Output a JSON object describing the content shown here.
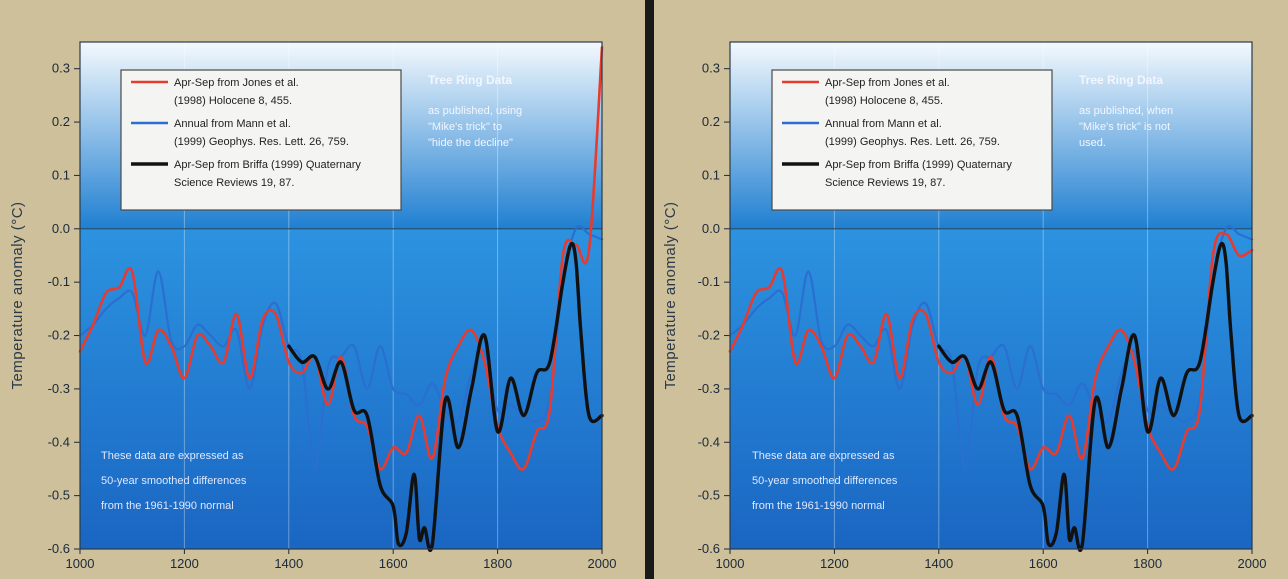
{
  "colors": {
    "frame": "#cdc09a",
    "sky_top": "#f4f9fd",
    "sky_bottom": "#1f7fd1",
    "red_series": "#e63b2e",
    "blue_series": "#2a6fd0",
    "black_series": "#111111"
  },
  "chart_data": [
    {
      "type": "line",
      "ylabel": "Temperature anomaly (°C)",
      "xlim": [
        1000,
        2000
      ],
      "ylim": [
        -0.6,
        0.35
      ],
      "xticks": [
        "1000",
        "1200",
        "1400",
        "1600",
        "1800",
        "2000"
      ],
      "yticks": [
        "0.3",
        "0.2",
        "0.1",
        "0.0",
        "-0.1",
        "-0.2",
        "-0.3",
        "-0.4",
        "-0.5",
        "-0.6"
      ],
      "grid": true,
      "legend_position": "top-left",
      "legend": [
        {
          "color": "red",
          "lines": [
            "Apr-Sep from Jones et al.",
            "(1998) Holocene 8, 455."
          ]
        },
        {
          "color": "blue",
          "lines": [
            "Annual from Mann et al.",
            "(1999) Geophys. Res. Lett. 26, 759."
          ]
        },
        {
          "color": "black",
          "lines": [
            "Apr-Sep from Briffa (1999) Quaternary",
            "Science Reviews 19, 87."
          ]
        }
      ],
      "annotation_title": "Tree Ring Data",
      "annotation_lines": [
        "as published, using",
        "\"Mike's trick\" to",
        "\"hide the decline\""
      ],
      "bottom_note": [
        "These data are expressed as",
        "50-year smoothed differences",
        "from the 1961-1990 normal"
      ],
      "series": [
        {
          "color": "red",
          "x": [
            1000,
            1025,
            1050,
            1075,
            1100,
            1125,
            1150,
            1175,
            1200,
            1225,
            1250,
            1275,
            1300,
            1325,
            1350,
            1375,
            1400,
            1425,
            1450,
            1475,
            1500,
            1525,
            1550,
            1575,
            1600,
            1625,
            1650,
            1675,
            1700,
            1725,
            1750,
            1775,
            1800,
            1825,
            1850,
            1875,
            1900,
            1925,
            1950,
            1975,
            2000
          ],
          "y": [
            -0.23,
            -0.18,
            -0.12,
            -0.11,
            -0.08,
            -0.25,
            -0.19,
            -0.22,
            -0.28,
            -0.2,
            -0.22,
            -0.25,
            -0.16,
            -0.28,
            -0.17,
            -0.16,
            -0.25,
            -0.27,
            -0.24,
            -0.33,
            -0.24,
            -0.35,
            -0.37,
            -0.45,
            -0.41,
            -0.42,
            -0.35,
            -0.43,
            -0.28,
            -0.22,
            -0.19,
            -0.25,
            -0.37,
            -0.42,
            -0.45,
            -0.38,
            -0.34,
            -0.05,
            -0.03,
            -0.04,
            0.34
          ]
        },
        {
          "color": "blue",
          "x": [
            1000,
            1025,
            1050,
            1075,
            1100,
            1125,
            1150,
            1175,
            1200,
            1225,
            1250,
            1275,
            1300,
            1325,
            1350,
            1375,
            1400,
            1425,
            1450,
            1475,
            1500,
            1525,
            1550,
            1575,
            1600,
            1625,
            1650,
            1675,
            1700,
            1725,
            1750,
            1775,
            1800,
            1825,
            1850,
            1875,
            1900,
            1925,
            1950,
            1975,
            2000
          ],
          "y": [
            -0.2,
            -0.18,
            -0.15,
            -0.13,
            -0.12,
            -0.2,
            -0.08,
            -0.21,
            -0.22,
            -0.18,
            -0.2,
            -0.22,
            -0.19,
            -0.3,
            -0.18,
            -0.14,
            -0.22,
            -0.25,
            -0.45,
            -0.26,
            -0.24,
            -0.22,
            -0.3,
            -0.22,
            -0.3,
            -0.31,
            -0.33,
            -0.29,
            -0.34,
            -0.36,
            -0.27,
            -0.23,
            -0.34,
            -0.33,
            -0.35,
            -0.36,
            -0.32,
            -0.1,
            0.0,
            -0.01,
            -0.02
          ]
        },
        {
          "color": "black",
          "x": [
            1400,
            1425,
            1450,
            1475,
            1500,
            1525,
            1550,
            1575,
            1600,
            1610,
            1625,
            1640,
            1650,
            1660,
            1675,
            1700,
            1725,
            1750,
            1775,
            1800,
            1825,
            1850,
            1875,
            1900,
            1925,
            1940,
            1950,
            1960,
            1975,
            2000
          ],
          "y": [
            -0.22,
            -0.25,
            -0.24,
            -0.3,
            -0.25,
            -0.34,
            -0.35,
            -0.48,
            -0.52,
            -0.59,
            -0.57,
            -0.46,
            -0.58,
            -0.56,
            -0.59,
            -0.32,
            -0.41,
            -0.3,
            -0.2,
            -0.38,
            -0.28,
            -0.35,
            -0.27,
            -0.25,
            -0.1,
            -0.03,
            -0.06,
            -0.2,
            -0.35,
            -0.35
          ]
        }
      ]
    },
    {
      "type": "line",
      "ylabel": "Temperature anomaly (°C)",
      "xlim": [
        1000,
        2000
      ],
      "ylim": [
        -0.6,
        0.35
      ],
      "xticks": [
        "1000",
        "1200",
        "1400",
        "1600",
        "1800",
        "2000"
      ],
      "yticks": [
        "0.3",
        "0.2",
        "0.1",
        "0.0",
        "-0.1",
        "-0.2",
        "-0.3",
        "-0.4",
        "-0.5",
        "-0.6"
      ],
      "grid": true,
      "legend_position": "top-left",
      "legend": [
        {
          "color": "red",
          "lines": [
            "Apr-Sep from Jones et al.",
            "(1998) Holocene 8, 455."
          ]
        },
        {
          "color": "blue",
          "lines": [
            "Annual from Mann et al.",
            "(1999) Geophys. Res. Lett. 26, 759."
          ]
        },
        {
          "color": "black",
          "lines": [
            "Apr-Sep from Briffa (1999) Quaternary",
            "Science Reviews 19, 87."
          ]
        }
      ],
      "annotation_title": "Tree Ring Data",
      "annotation_lines": [
        "as published, when",
        "\"Mike's trick\" is not",
        "used."
      ],
      "bottom_note": [
        "These data are expressed as",
        "50-year smoothed differences",
        "from the 1961-1990 normal"
      ],
      "series": [
        {
          "color": "red",
          "x": [
            1000,
            1025,
            1050,
            1075,
            1100,
            1125,
            1150,
            1175,
            1200,
            1225,
            1250,
            1275,
            1300,
            1325,
            1350,
            1375,
            1400,
            1425,
            1450,
            1475,
            1500,
            1525,
            1550,
            1575,
            1600,
            1625,
            1650,
            1675,
            1700,
            1725,
            1750,
            1775,
            1800,
            1825,
            1850,
            1875,
            1900,
            1925,
            1950,
            1975,
            2000
          ],
          "y": [
            -0.23,
            -0.18,
            -0.12,
            -0.11,
            -0.08,
            -0.25,
            -0.19,
            -0.22,
            -0.28,
            -0.2,
            -0.22,
            -0.25,
            -0.16,
            -0.28,
            -0.17,
            -0.16,
            -0.25,
            -0.27,
            -0.24,
            -0.33,
            -0.24,
            -0.35,
            -0.37,
            -0.45,
            -0.41,
            -0.42,
            -0.35,
            -0.43,
            -0.28,
            -0.22,
            -0.19,
            -0.25,
            -0.37,
            -0.42,
            -0.45,
            -0.38,
            -0.34,
            -0.05,
            -0.01,
            -0.05,
            -0.04
          ]
        },
        {
          "color": "blue",
          "x": [
            1000,
            1025,
            1050,
            1075,
            1100,
            1125,
            1150,
            1175,
            1200,
            1225,
            1250,
            1275,
            1300,
            1325,
            1350,
            1375,
            1400,
            1425,
            1450,
            1475,
            1500,
            1525,
            1550,
            1575,
            1600,
            1625,
            1650,
            1675,
            1700,
            1725,
            1750,
            1775,
            1800,
            1825,
            1850,
            1875,
            1900,
            1925,
            1950,
            1975,
            2000
          ],
          "y": [
            -0.2,
            -0.18,
            -0.15,
            -0.13,
            -0.12,
            -0.2,
            -0.08,
            -0.21,
            -0.22,
            -0.18,
            -0.2,
            -0.22,
            -0.19,
            -0.3,
            -0.18,
            -0.14,
            -0.22,
            -0.25,
            -0.45,
            -0.26,
            -0.24,
            -0.22,
            -0.3,
            -0.22,
            -0.3,
            -0.31,
            -0.33,
            -0.29,
            -0.34,
            -0.36,
            -0.27,
            -0.23,
            -0.34,
            -0.33,
            -0.35,
            -0.36,
            -0.32,
            -0.1,
            0.0,
            -0.01,
            -0.02
          ]
        },
        {
          "color": "black",
          "x": [
            1400,
            1425,
            1450,
            1475,
            1500,
            1525,
            1550,
            1575,
            1600,
            1610,
            1625,
            1640,
            1650,
            1660,
            1675,
            1700,
            1725,
            1750,
            1775,
            1800,
            1825,
            1850,
            1875,
            1900,
            1925,
            1940,
            1950,
            1960,
            1975,
            2000
          ],
          "y": [
            -0.22,
            -0.25,
            -0.24,
            -0.3,
            -0.25,
            -0.34,
            -0.35,
            -0.48,
            -0.52,
            -0.59,
            -0.57,
            -0.46,
            -0.58,
            -0.56,
            -0.59,
            -0.32,
            -0.41,
            -0.3,
            -0.2,
            -0.38,
            -0.28,
            -0.35,
            -0.27,
            -0.25,
            -0.1,
            -0.03,
            -0.06,
            -0.2,
            -0.35,
            -0.35
          ]
        }
      ]
    }
  ]
}
